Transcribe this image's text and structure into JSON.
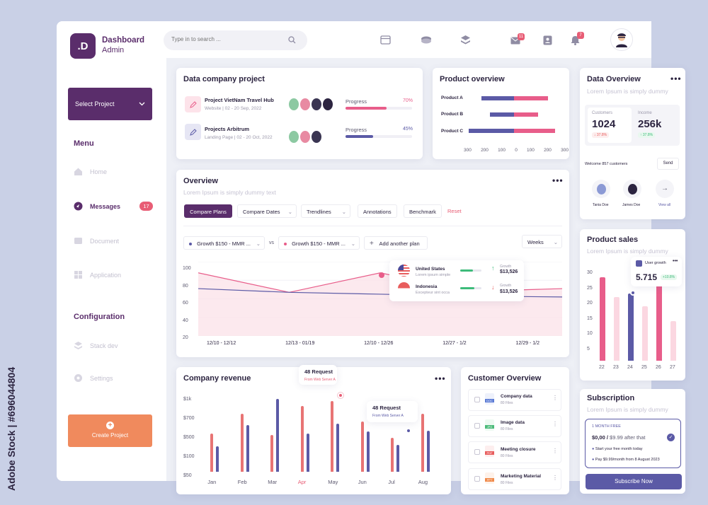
{
  "brand": {
    "logo_letter": ".D",
    "title": "Dashboard",
    "subtitle": "Admin",
    "color": "#5a2d6b"
  },
  "sidebar": {
    "select_project": "Select Project",
    "menu_heading": "Menu",
    "menu_items": [
      {
        "label": "Home",
        "icon": "home-icon"
      },
      {
        "label": "Messages",
        "icon": "messages-icon",
        "badge": "17"
      },
      {
        "label": "Document",
        "icon": "document-icon"
      },
      {
        "label": "Application",
        "icon": "application-icon"
      }
    ],
    "config_heading": "Configuration",
    "config_items": [
      {
        "label": "Stack dev",
        "icon": "stack-icon"
      },
      {
        "label": "Settings",
        "icon": "settings-icon"
      }
    ],
    "create_project": "Create Project"
  },
  "topbar": {
    "search_placeholder": "Type in to search ...",
    "mail_badge": "11",
    "bell_badge": "7"
  },
  "data_company_project": {
    "title": "Data company project",
    "projects": [
      {
        "name": "Project VietNam Travel Hub",
        "meta": "Website  |  02 - 20 Sep, 2022",
        "progress_label": "Progress",
        "progress": "70%",
        "progress_value": 0.7,
        "color": "#e85d8a"
      },
      {
        "name": "Projects Arbitrum",
        "meta": "Landing Page  |  02 - 20 Oct, 2022",
        "progress_label": "Progress",
        "progress": "45%",
        "progress_value": 0.45,
        "color": "#5b5aa6"
      }
    ]
  },
  "product_overview": {
    "title": "Product overview",
    "products": [
      {
        "name": "Product A",
        "left": 230,
        "right": 240
      },
      {
        "name": "Product B",
        "left": 170,
        "right": 170
      },
      {
        "name": "Product C",
        "left": 330,
        "right": 290
      }
    ],
    "axis": [
      "300",
      "200",
      "100",
      "0",
      "100",
      "200",
      "300"
    ]
  },
  "overview": {
    "title": "Overview",
    "subtitle": "Lorem Ipsum is simply dummy text",
    "buttons": [
      "Compare Plans",
      "Compare Dates",
      "Trendlines",
      "Annotations",
      "Benchmark"
    ],
    "reset": "Reset",
    "plan_a": "Growth $150 - MMR ...",
    "vs": "vs",
    "plan_b": "Growth $150 - MMR ...",
    "add_plan": "Add another plan",
    "period": "Weeks",
    "y_ticks": [
      "100",
      "80",
      "60",
      "40",
      "20"
    ],
    "x_ticks": [
      "12/10 - 12/12",
      "12/13 - 01/19",
      "12/10 - 12/26",
      "12/27 - 1/2",
      "12/29 - 1/2"
    ],
    "tooltip": [
      {
        "country": "United States",
        "desc": "Lorem ipsum simple",
        "kind": "Growth",
        "value": "$13,526",
        "dir": "up"
      },
      {
        "country": "Indonesia",
        "desc": "Excepteur sint occa",
        "kind": "Growth",
        "value": "$13,526",
        "dir": "down"
      }
    ]
  },
  "chart_data": [
    {
      "type": "area",
      "title": "Overview",
      "x": [
        "12/10 - 12/12",
        "12/13 - 01/19",
        "12/10 - 12/26",
        "12/27 - 1/2",
        "12/29 - 1/2"
      ],
      "ylim": [
        20,
        100
      ],
      "series": [
        {
          "name": "Growth $150 - MMR ...",
          "values": [
            88,
            67,
            88,
            68,
            71
          ],
          "color": "#e85d8a"
        },
        {
          "name": "Growth $150 - MMR ...",
          "values": [
            71,
            67,
            65,
            63,
            62
          ],
          "color": "#5b5aa6"
        }
      ]
    },
    {
      "type": "bar",
      "title": "Company revenue",
      "categories": [
        "Jan",
        "Feb",
        "Mar",
        "Apr",
        "May",
        "Jun",
        "Jul",
        "Aug"
      ],
      "y_ticks": [
        "$1k",
        "$700",
        "$500",
        "$100",
        "$50"
      ],
      "series": [
        {
          "values": [
            0.48,
            0.73,
            0.46,
            0.83,
            0.89,
            0.63,
            0.43,
            0.73
          ],
          "color": "#e87474"
        },
        {
          "values": [
            0.32,
            0.59,
            0.92,
            0.48,
            0.61,
            0.51,
            0.34,
            0.52
          ],
          "color": "#5b5aa6"
        }
      ]
    },
    {
      "type": "bar",
      "title": "Product sales",
      "categories": [
        "22",
        "23",
        "24",
        "25",
        "26",
        "27"
      ],
      "ylim": [
        5,
        30
      ],
      "y_ticks": [
        "30",
        "25",
        "20",
        "15",
        "10",
        "5"
      ],
      "values": [
        27,
        21.5,
        22.5,
        19,
        27.5,
        15
      ],
      "colors": [
        "#e85d8a",
        "#fbd7e1",
        "#5b5aa6",
        "#fbd7e1",
        "#e85d8a",
        "#fbd7e1"
      ]
    }
  ],
  "company_revenue": {
    "title": "Company revenue",
    "tooltip1": {
      "title": "48 Request",
      "sub": "From Web Server A"
    },
    "tooltip2": {
      "title": "48 Request",
      "sub": "From Web Server A"
    },
    "highlight_month": "Apr"
  },
  "customer_overview": {
    "title": "Customer Overview",
    "files": [
      {
        "name": "Company data",
        "count": "80 Files",
        "type": "DOC",
        "color": "#5b7bd5"
      },
      {
        "name": "Image data",
        "count": "80 Files",
        "type": "JPG",
        "color": "#4cbb7a"
      },
      {
        "name": "Meeting closure",
        "count": "80 Files",
        "type": "PDF",
        "color": "#e85d5d"
      },
      {
        "name": "Marketing Material",
        "count": "80 Files",
        "type": "PPT",
        "color": "#f08a4b"
      }
    ]
  },
  "data_overview": {
    "title": "Data Overview",
    "subtitle": "Lorem Ipsum is simply dummy",
    "customers_label": "Customers",
    "customers_value": "1024",
    "customers_change": "37.8%",
    "income_label": "Income",
    "income_value": "256k",
    "income_change": "37.8%",
    "welcome": "Welcome 857 customers",
    "send": "Send",
    "people": [
      "Tania Doe",
      "James Doe"
    ],
    "view_all": "View all"
  },
  "product_sales": {
    "title": "Product sales",
    "subtitle": "Lorem Ipsum is simply dummy",
    "tooltip_label": "User growth",
    "tooltip_value": "5.715",
    "tooltip_change": "+10.8%"
  },
  "subscription": {
    "title": "Subscription",
    "subtitle": "Lorem Ipsum is simply dummy",
    "plan": "1 MONTH FREE",
    "price": "$0,00 / ",
    "price_after": "$9.99 after that",
    "bullet1": "Start your free month today",
    "bullet2": "Pay $9.99/month from 8 August 2023",
    "cta": "Subscribe Now"
  },
  "watermark": {
    "side_text": "Adobe Stock | #696044804"
  }
}
